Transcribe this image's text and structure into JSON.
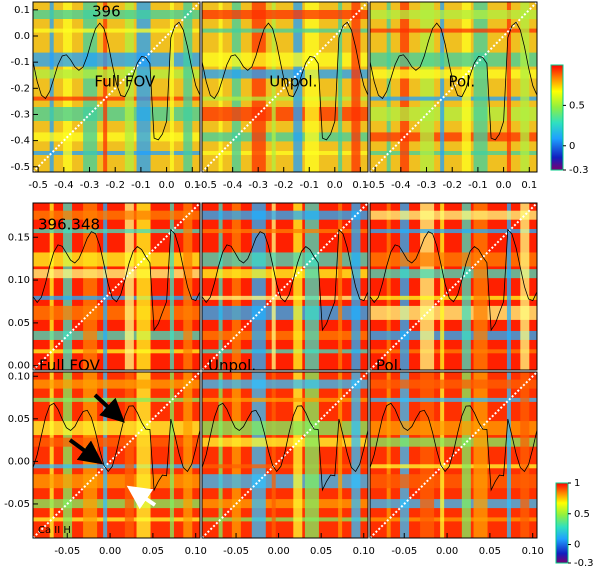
{
  "chart_data": [
    {
      "type": "heatmap",
      "line_label": "396",
      "panel_labels": [
        "Full FOV",
        "Unpol.",
        "Pol."
      ],
      "xlim": [
        -0.52,
        0.13
      ],
      "xticks": [
        -0.5,
        -0.4,
        -0.3,
        -0.2,
        -0.1,
        {
          "value": 0,
          "label": "0.0"
        },
        0.1
      ],
      "ylim": [
        -0.52,
        0.13
      ],
      "yticks": [
        0.1,
        {
          "value": 0,
          "label": "0.0"
        },
        -0.1,
        -0.2,
        -0.3,
        -0.4,
        -0.5
      ],
      "colorbar": {
        "lim": [
          -0.3,
          1
        ],
        "ticks": [
          0.5,
          0,
          -0.3
        ]
      }
    },
    {
      "type": "heatmap",
      "line_label": "396.348",
      "panel_labels": [
        "Full FOV",
        "Unpol.",
        "Pol."
      ],
      "ylim": [
        -0.005,
        0.19
      ],
      "yticks": [
        {
          "value": 0,
          "label": "0.00"
        },
        0.05,
        {
          "value": 0.1,
          "label": "0.10"
        },
        0.15
      ]
    },
    {
      "type": "heatmap",
      "line_label": "Ca II H",
      "xlim": [
        -0.09,
        0.105
      ],
      "xticks": [
        -0.05,
        {
          "value": 0,
          "label": "0.00"
        },
        0.05,
        {
          "value": 0.1,
          "label": "0.10"
        }
      ],
      "ylim": [
        -0.09,
        0.105
      ],
      "yticks": [
        -0.05,
        {
          "value": 0,
          "label": "0.00"
        },
        0.05,
        {
          "value": 0.1,
          "label": "0.10"
        }
      ],
      "colorbar": {
        "lim": [
          -0.3,
          1
        ],
        "ticks": [
          1,
          0.5,
          0,
          -0.3
        ]
      }
    }
  ]
}
